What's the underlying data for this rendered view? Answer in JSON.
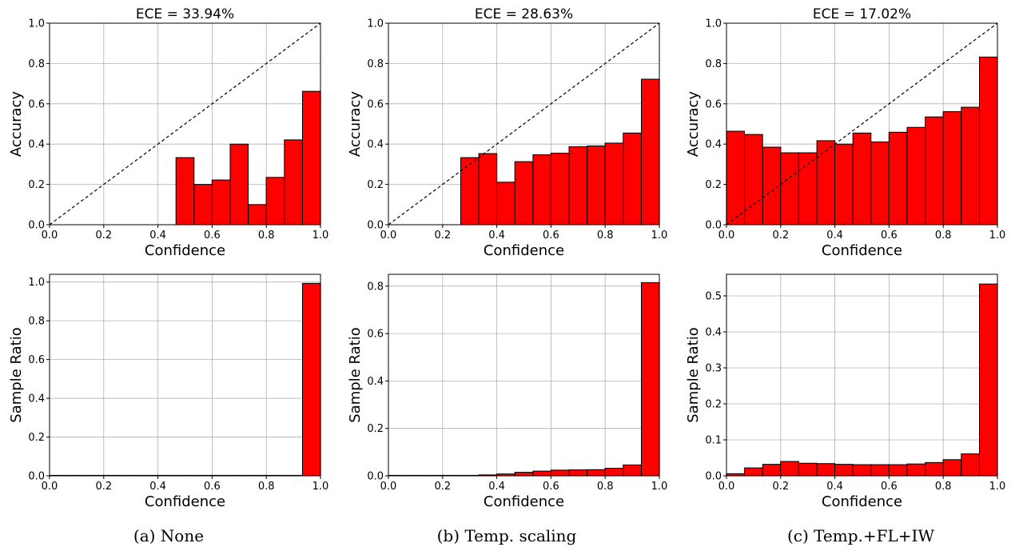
{
  "captions": [
    "(a) None",
    "(b) Temp. scaling",
    "(c) Temp.+FL+IW"
  ],
  "colors": {
    "bar_fill": "#ff0000",
    "bar_edge": "#000000",
    "grid": "#b0b0b0",
    "diagonal": "#000000"
  },
  "chart_data": [
    {
      "type": "bar",
      "panel": "a-top",
      "title": "ECE = 33.94%",
      "xlabel": "Confidence",
      "ylabel": "Accuracy",
      "xlim": [
        0,
        1
      ],
      "ylim": [
        0,
        1
      ],
      "xticks": [
        "0.0",
        "0.2",
        "0.4",
        "0.6",
        "0.8",
        "1.0"
      ],
      "yticks": [
        "0.0",
        "0.2",
        "0.4",
        "0.6",
        "0.8",
        "1.0"
      ],
      "bin_width": 0.0667,
      "diagonal": true,
      "grid": true,
      "bars": [
        {
          "x": 0.5,
          "y": 0.333
        },
        {
          "x": 0.567,
          "y": 0.2
        },
        {
          "x": 0.633,
          "y": 0.222
        },
        {
          "x": 0.7,
          "y": 0.4
        },
        {
          "x": 0.767,
          "y": 0.1
        },
        {
          "x": 0.833,
          "y": 0.235
        },
        {
          "x": 0.9,
          "y": 0.421
        },
        {
          "x": 0.967,
          "y": 0.662
        }
      ]
    },
    {
      "type": "bar",
      "panel": "b-top",
      "title": "ECE = 28.63%",
      "xlabel": "Confidence",
      "ylabel": "Accuracy",
      "xlim": [
        0,
        1
      ],
      "ylim": [
        0,
        1
      ],
      "xticks": [
        "0.0",
        "0.2",
        "0.4",
        "0.6",
        "0.8",
        "1.0"
      ],
      "yticks": [
        "0.0",
        "0.2",
        "0.4",
        "0.6",
        "0.8",
        "1.0"
      ],
      "bin_width": 0.0667,
      "diagonal": true,
      "grid": true,
      "bars": [
        {
          "x": 0.3,
          "y": 0.333
        },
        {
          "x": 0.367,
          "y": 0.353
        },
        {
          "x": 0.433,
          "y": 0.211
        },
        {
          "x": 0.5,
          "y": 0.313
        },
        {
          "x": 0.567,
          "y": 0.347
        },
        {
          "x": 0.633,
          "y": 0.355
        },
        {
          "x": 0.7,
          "y": 0.387
        },
        {
          "x": 0.767,
          "y": 0.391
        },
        {
          "x": 0.833,
          "y": 0.405
        },
        {
          "x": 0.9,
          "y": 0.455
        },
        {
          "x": 0.967,
          "y": 0.722
        }
      ]
    },
    {
      "type": "bar",
      "panel": "c-top",
      "title": "ECE = 17.02%",
      "xlabel": "Confidence",
      "ylabel": "Accuracy",
      "xlim": [
        0,
        1
      ],
      "ylim": [
        0,
        1
      ],
      "xticks": [
        "0.0",
        "0.2",
        "0.4",
        "0.6",
        "0.8",
        "1.0"
      ],
      "yticks": [
        "0.0",
        "0.2",
        "0.4",
        "0.6",
        "0.8",
        "1.0"
      ],
      "bin_width": 0.0667,
      "diagonal": true,
      "grid": true,
      "bars": [
        {
          "x": 0.033,
          "y": 0.464
        },
        {
          "x": 0.1,
          "y": 0.448
        },
        {
          "x": 0.167,
          "y": 0.385
        },
        {
          "x": 0.233,
          "y": 0.357
        },
        {
          "x": 0.3,
          "y": 0.357
        },
        {
          "x": 0.367,
          "y": 0.417
        },
        {
          "x": 0.433,
          "y": 0.4
        },
        {
          "x": 0.5,
          "y": 0.455
        },
        {
          "x": 0.567,
          "y": 0.411
        },
        {
          "x": 0.633,
          "y": 0.459
        },
        {
          "x": 0.7,
          "y": 0.483
        },
        {
          "x": 0.767,
          "y": 0.535
        },
        {
          "x": 0.833,
          "y": 0.561
        },
        {
          "x": 0.9,
          "y": 0.583
        },
        {
          "x": 0.967,
          "y": 0.832
        }
      ]
    },
    {
      "type": "bar",
      "panel": "a-bottom",
      "xlabel": "Confidence",
      "ylabel": "Sample Ratio",
      "xlim": [
        0,
        1
      ],
      "ylim": [
        0,
        1.04
      ],
      "xticks": [
        "0.0",
        "0.2",
        "0.4",
        "0.6",
        "0.8",
        "1.0"
      ],
      "yticks": [
        "0.0",
        "0.2",
        "0.4",
        "0.6",
        "0.8",
        "1.0"
      ],
      "bin_width": 0.0667,
      "diagonal": false,
      "grid": true,
      "bars": [
        {
          "x": 0.033,
          "y": 0
        },
        {
          "x": 0.1,
          "y": 0
        },
        {
          "x": 0.167,
          "y": 0
        },
        {
          "x": 0.233,
          "y": 0
        },
        {
          "x": 0.3,
          "y": 0
        },
        {
          "x": 0.367,
          "y": 0
        },
        {
          "x": 0.433,
          "y": 0
        },
        {
          "x": 0.5,
          "y": 0.001
        },
        {
          "x": 0.567,
          "y": 0.001
        },
        {
          "x": 0.633,
          "y": 0.001
        },
        {
          "x": 0.7,
          "y": 0.001
        },
        {
          "x": 0.767,
          "y": 0.001
        },
        {
          "x": 0.833,
          "y": 0.001
        },
        {
          "x": 0.9,
          "y": 0.002
        },
        {
          "x": 0.967,
          "y": 0.993
        }
      ]
    },
    {
      "type": "bar",
      "panel": "b-bottom",
      "xlabel": "Confidence",
      "ylabel": "Sample Ratio",
      "xlim": [
        0,
        1
      ],
      "ylim": [
        0,
        0.85
      ],
      "xticks": [
        "0.0",
        "0.2",
        "0.4",
        "0.6",
        "0.8",
        "1.0"
      ],
      "yticks": [
        "0.0",
        "0.2",
        "0.4",
        "0.6",
        "0.8"
      ],
      "bin_width": 0.0667,
      "diagonal": false,
      "grid": true,
      "bars": [
        {
          "x": 0.033,
          "y": 0
        },
        {
          "x": 0.1,
          "y": 0
        },
        {
          "x": 0.167,
          "y": 0
        },
        {
          "x": 0.233,
          "y": 0
        },
        {
          "x": 0.3,
          "y": 0.002
        },
        {
          "x": 0.367,
          "y": 0.004
        },
        {
          "x": 0.433,
          "y": 0.008
        },
        {
          "x": 0.5,
          "y": 0.015
        },
        {
          "x": 0.567,
          "y": 0.02
        },
        {
          "x": 0.633,
          "y": 0.024
        },
        {
          "x": 0.7,
          "y": 0.025
        },
        {
          "x": 0.767,
          "y": 0.026
        },
        {
          "x": 0.833,
          "y": 0.032
        },
        {
          "x": 0.9,
          "y": 0.046
        },
        {
          "x": 0.967,
          "y": 0.815
        }
      ]
    },
    {
      "type": "bar",
      "panel": "c-bottom",
      "xlabel": "Confidence",
      "ylabel": "Sample Ratio",
      "xlim": [
        0,
        1
      ],
      "ylim": [
        0,
        0.56
      ],
      "xticks": [
        "0.0",
        "0.2",
        "0.4",
        "0.6",
        "0.8",
        "1.0"
      ],
      "yticks": [
        "0.0",
        "0.1",
        "0.2",
        "0.3",
        "0.4",
        "0.5"
      ],
      "bin_width": 0.0667,
      "diagonal": false,
      "grid": true,
      "bars": [
        {
          "x": 0.033,
          "y": 0.006
        },
        {
          "x": 0.1,
          "y": 0.022
        },
        {
          "x": 0.167,
          "y": 0.032
        },
        {
          "x": 0.233,
          "y": 0.04
        },
        {
          "x": 0.3,
          "y": 0.035
        },
        {
          "x": 0.367,
          "y": 0.034
        },
        {
          "x": 0.433,
          "y": 0.032
        },
        {
          "x": 0.5,
          "y": 0.031
        },
        {
          "x": 0.567,
          "y": 0.031
        },
        {
          "x": 0.633,
          "y": 0.031
        },
        {
          "x": 0.7,
          "y": 0.033
        },
        {
          "x": 0.767,
          "y": 0.037
        },
        {
          "x": 0.833,
          "y": 0.045
        },
        {
          "x": 0.9,
          "y": 0.061
        },
        {
          "x": 0.967,
          "y": 0.533
        }
      ]
    }
  ]
}
